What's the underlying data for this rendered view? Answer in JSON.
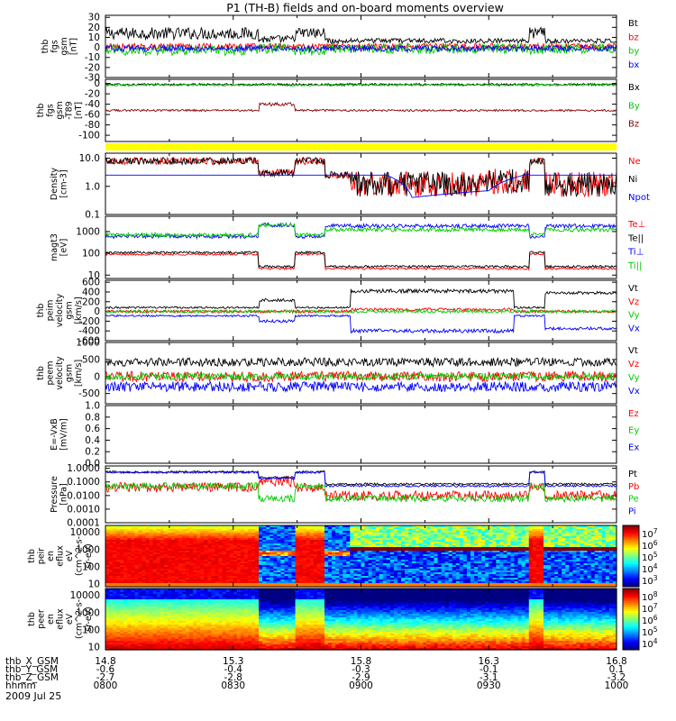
{
  "title": "P1 (TH-B) fields and on-board moments overview",
  "date": "2009 Jul 25",
  "chart_data": {
    "type": "line",
    "time_axis": {
      "rows": [
        {
          "label": "thb_X_GSM",
          "values": [
            "14.8",
            "15.3",
            "15.8",
            "16.3",
            "16.8"
          ]
        },
        {
          "label": "thb_Y_GSM",
          "values": [
            "-0.6",
            "-0.4",
            "-0.3",
            "-0.1",
            "0.1"
          ]
        },
        {
          "label": "thb_Z_GSM",
          "values": [
            "-2.7",
            "-2.8",
            "-2.9",
            "-3.1",
            "-3.2"
          ]
        },
        {
          "label": "hhmm",
          "values": [
            "0800",
            "0830",
            "0900",
            "0930",
            "1000"
          ]
        }
      ]
    },
    "panels": [
      {
        "id": "fgs",
        "ylabel": [
          "thb",
          "fgs",
          "gsm",
          "[nT]"
        ],
        "scale": "linear",
        "ylim": [
          -30,
          32
        ],
        "yticks": [
          "30",
          "20",
          "10",
          "0",
          "-10",
          "-20",
          "-30"
        ],
        "ytick_values": [
          30,
          20,
          10,
          0,
          -10,
          -20,
          -30
        ],
        "series": [
          {
            "name": "Bt",
            "color": "#000000"
          },
          {
            "name": "bz",
            "color": "#ff0000"
          },
          {
            "name": "by",
            "color": "#00cc00"
          },
          {
            "name": "bx",
            "color": "#0000ff"
          }
        ]
      },
      {
        "id": "fgl",
        "ylabel": [
          "thb",
          "fgs",
          "gsm",
          "-T89",
          "[nT]"
        ],
        "scale": "linear",
        "ylim": [
          -112,
          8
        ],
        "yticks": [
          "0",
          "-20",
          "-40",
          "-60",
          "-80",
          "-100"
        ],
        "ytick_values": [
          0,
          -20,
          -40,
          -60,
          -80,
          -100
        ],
        "series": [
          {
            "name": "Bx",
            "color": "#000000"
          },
          {
            "name": "By",
            "color": "#00cc00"
          },
          {
            "name": "Bz",
            "color": "#8b0000"
          }
        ]
      },
      {
        "id": "density",
        "ylabel": [
          "Density",
          "[cm-3]"
        ],
        "scale": "log",
        "ylim": [
          0.1,
          15
        ],
        "yticks": [
          "10.0",
          "1.0",
          "0.1"
        ],
        "ytick_values": [
          10,
          1,
          0.1
        ],
        "series": [
          {
            "name": "Ne",
            "color": "#ff0000"
          },
          {
            "name": "Ni",
            "color": "#000000"
          },
          {
            "name": "Npot",
            "color": "#0000ff"
          }
        ]
      },
      {
        "id": "temperature",
        "ylabel": [
          "magt3",
          "[eV]"
        ],
        "scale": "log",
        "ylim": [
          7,
          5000
        ],
        "yticks": [
          "1000",
          "100",
          "10"
        ],
        "ytick_values": [
          1000,
          100,
          10
        ],
        "series": [
          {
            "name": "Te⊥",
            "color": "#ff0000"
          },
          {
            "name": "Te||",
            "color": "#000000"
          },
          {
            "name": "Ti⊥",
            "color": "#0000ff"
          },
          {
            "name": "Ti||",
            "color": "#00cc00"
          }
        ]
      },
      {
        "id": "ion_velocity",
        "ylabel": [
          "thb",
          "peim",
          "velocity",
          "gsm",
          "[km/s]"
        ],
        "scale": "linear",
        "ylim": [
          -600,
          640
        ],
        "yticks": [
          "600",
          "400",
          "200",
          "0",
          "-200",
          "-400",
          "-600"
        ],
        "ytick_values": [
          600,
          400,
          200,
          0,
          -200,
          -400,
          -600
        ],
        "series": [
          {
            "name": "Vt",
            "color": "#000000"
          },
          {
            "name": "Vz",
            "color": "#ff0000"
          },
          {
            "name": "Vy",
            "color": "#00cc00"
          },
          {
            "name": "Vx",
            "color": "#0000ff"
          }
        ]
      },
      {
        "id": "electron_velocity",
        "ylabel": [
          "thb",
          "peem",
          "velocity",
          "gsm",
          "[km/s]"
        ],
        "scale": "linear",
        "ylim": [
          -800,
          1000
        ],
        "yticks": [
          "1000",
          "500",
          "0",
          "-500"
        ],
        "ytick_values": [
          1000,
          500,
          0,
          -500
        ],
        "series": [
          {
            "name": "Vt",
            "color": "#000000"
          },
          {
            "name": "Vz",
            "color": "#ff0000"
          },
          {
            "name": "Vy",
            "color": "#00cc00"
          },
          {
            "name": "Vx",
            "color": "#0000ff"
          }
        ]
      },
      {
        "id": "efield",
        "ylabel": [
          "E=-VxB",
          "[mV/m]"
        ],
        "scale": "linear",
        "ylim": [
          0,
          1
        ],
        "yticks": [
          "1.0",
          "0.8",
          "0.6",
          "0.4",
          "0.2",
          "0.0"
        ],
        "ytick_values": [
          1.0,
          0.8,
          0.6,
          0.4,
          0.2,
          0.0
        ],
        "series": [
          {
            "name": "Ez",
            "color": "#ff0000"
          },
          {
            "name": "Ey",
            "color": "#00cc00"
          },
          {
            "name": "Ex",
            "color": "#0000ff"
          }
        ]
      },
      {
        "id": "pressure",
        "ylabel": [
          "Pressure",
          "[nPa]"
        ],
        "scale": "log",
        "ylim": [
          0.0001,
          1.5
        ],
        "yticks": [
          "1.0000",
          "0.1000",
          "0.0100",
          "0.0010",
          "0.0001"
        ],
        "ytick_values": [
          1,
          0.1,
          0.01,
          0.001,
          0.0001
        ],
        "series": [
          {
            "name": "Pt",
            "color": "#000000"
          },
          {
            "name": "Pb",
            "color": "#ff0000"
          },
          {
            "name": "Pe",
            "color": "#00cc00"
          },
          {
            "name": "Pi",
            "color": "#0000ff"
          }
        ]
      },
      {
        "id": "ion_spectrogram",
        "type": "heatmap",
        "ylabel": [
          "thb",
          "peir",
          "en",
          "eflux",
          "eV",
          "(cm^2-s-",
          "sr-eV)"
        ],
        "scale": "log",
        "ylim": [
          7,
          25000
        ],
        "yticks": [
          "10000",
          "1000",
          "100",
          "10"
        ],
        "ytick_values": [
          10000,
          1000,
          100,
          10
        ],
        "colorbar_ticks": [
          "10^7",
          "10^6",
          "10^5",
          "10^4",
          "10^3"
        ],
        "colorbar_range": [
          2.5,
          7.4
        ]
      },
      {
        "id": "electron_spectrogram",
        "type": "heatmap",
        "ylabel": [
          "thb",
          "peer",
          "en",
          "eflux",
          "eV",
          "(cm^2-s-",
          "sr-eV)"
        ],
        "scale": "log",
        "ylim": [
          7,
          25000
        ],
        "yticks": [
          "10000",
          "1000",
          "100",
          "10"
        ],
        "ytick_values": [
          10000,
          1000,
          100,
          10
        ],
        "colorbar_ticks": [
          "10^8",
          "10^7",
          "10^6",
          "10^5",
          "10^4"
        ],
        "colorbar_range": [
          3.6,
          8.4
        ]
      }
    ]
  }
}
